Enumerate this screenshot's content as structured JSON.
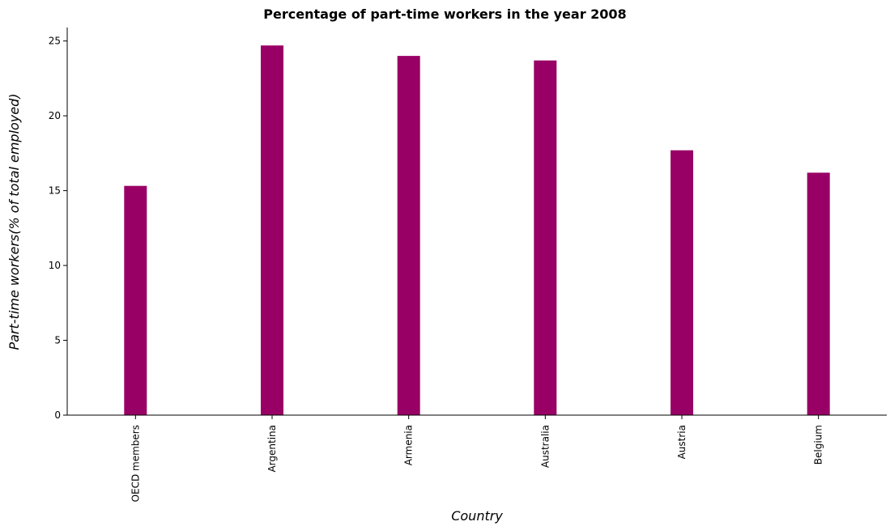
{
  "chart_data": {
    "type": "bar",
    "title": "Percentage of part-time workers in the year 2008",
    "xlabel": "Country",
    "ylabel": "Part-time workers(% of total employed)",
    "categories": [
      "OECD members",
      "Argentina",
      "Armenia",
      "Australia",
      "Austria",
      "Belgium"
    ],
    "values": [
      15.32,
      24.7,
      24.0,
      23.7,
      17.7,
      16.2
    ],
    "ylim": [
      0,
      25.9
    ],
    "yticks": [
      0,
      5,
      10,
      15,
      20,
      25
    ],
    "grid": false,
    "bar_color": "#990066"
  }
}
